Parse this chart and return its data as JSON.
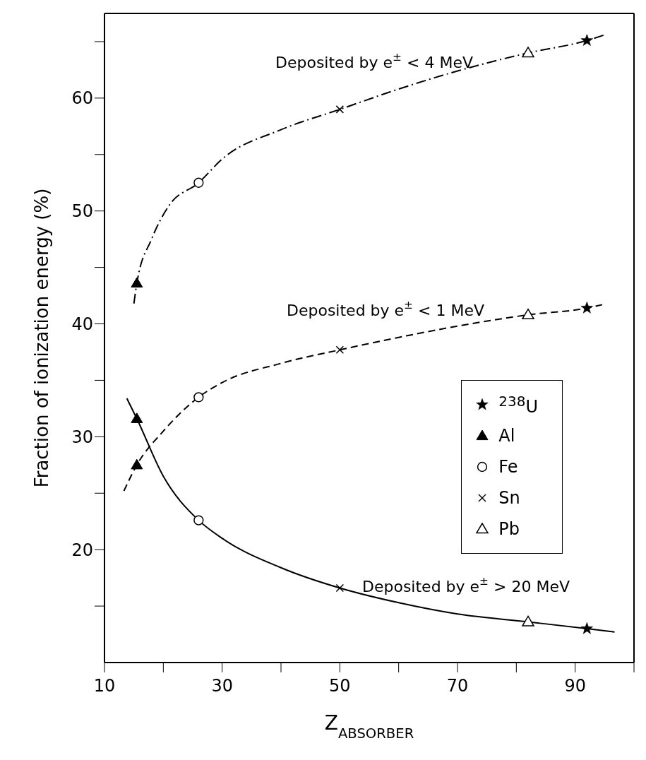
{
  "chart_data": {
    "type": "line",
    "xlabel": "Z$_{ABSORBER}$",
    "ylabel": "Fraction of ionization energy (%)",
    "xlim": [
      10,
      100
    ],
    "xticks": [
      10,
      {
        "value": 20,
        "label": null
      },
      30,
      {
        "value": 40,
        "label": null
      },
      50,
      {
        "value": 60,
        "label": null
      },
      70,
      {
        "value": 80,
        "label": null
      },
      90,
      {
        "value": 100,
        "label": null
      }
    ],
    "ylim": [
      10,
      67.5
    ],
    "yticks": [
      {
        "value": 15,
        "label": null
      },
      20,
      {
        "value": 25,
        "label": null
      },
      30,
      {
        "value": 35,
        "label": null
      },
      40,
      {
        "value": 45,
        "label": null
      },
      50,
      {
        "value": 55,
        "label": null
      },
      60,
      {
        "value": 65,
        "label": null
      }
    ],
    "legend": "right",
    "series": [
      {
        "line_style": "dashdot",
        "color": "#000000",
        "x": [
          15,
          15.5,
          18,
          21,
          26,
          30,
          40,
          50,
          60,
          70,
          82,
          92,
          95
        ],
        "values": [
          41.8,
          43.6,
          47.5,
          50.5,
          52.5,
          54.6,
          57.2,
          59,
          60.8,
          62.4,
          64,
          65.1,
          65.6
        ]
      },
      {
        "line_style": "dashed",
        "color": "#000000",
        "x": [
          13.3,
          15.5,
          20,
          26,
          30,
          40,
          50,
          60,
          70,
          82,
          92,
          94.6
        ],
        "values": [
          25.2,
          27.5,
          30.5,
          33.5,
          34.8,
          36.5,
          37.7,
          38.8,
          39.8,
          40.8,
          41.4,
          41.7
        ]
      },
      {
        "line_style": "solid",
        "color": "#000000",
        "x": [
          13.8,
          15.5,
          20,
          26,
          30,
          40,
          50,
          60,
          70,
          82,
          92,
          96.7
        ],
        "values": [
          33.4,
          31.6,
          26.5,
          22.6,
          21,
          18.4,
          16.6,
          15.3,
          14.3,
          13.6,
          13,
          12.7
        ]
      },
      {
        "type": "scatter",
        "name": "$^{238}$U",
        "marker": "star",
        "color": "#000000",
        "x": [
          92,
          92,
          92
        ],
        "values": [
          65.1,
          41.4,
          13
        ]
      },
      {
        "type": "scatter",
        "name": "Al",
        "marker": "triangle",
        "color": "#000000",
        "x": [
          15.5,
          15.5,
          15.5
        ],
        "values": [
          43.6,
          27.5,
          31.6
        ]
      },
      {
        "type": "scatter",
        "name": "Fe",
        "marker": "circle-open",
        "color": "#000000",
        "x": [
          26,
          26,
          26
        ],
        "values": [
          52.5,
          33.5,
          22.6
        ]
      },
      {
        "type": "scatter",
        "name": "Sn",
        "marker": "cross",
        "color": "#000000",
        "x": [
          50,
          50,
          50
        ],
        "values": [
          59,
          37.7,
          16.6
        ]
      },
      {
        "type": "scatter",
        "name": "Pb",
        "marker": "triangle-open",
        "color": "#000000",
        "x": [
          82,
          82,
          82
        ],
        "values": [
          64,
          40.8,
          13.6
        ]
      }
    ],
    "annotations": [
      "Deposited by e$^{±}$ < 4 MeV",
      "Deposited by e$^{±}$ < 1 MeV",
      "Deposited by e$^{±}$ > 20 MeV"
    ]
  }
}
